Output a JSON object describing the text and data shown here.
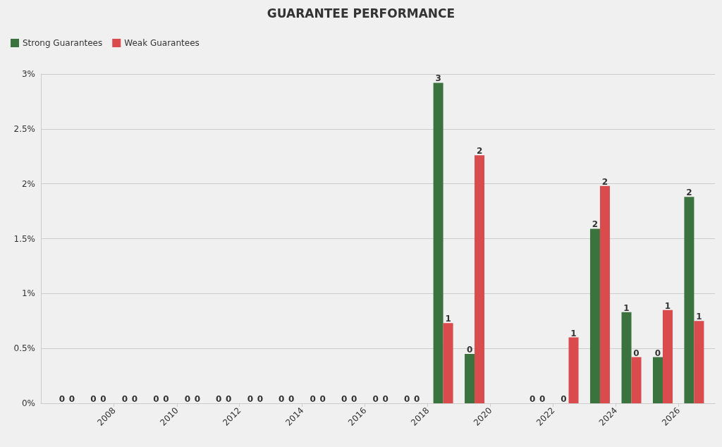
{
  "chart_data": {
    "type": "bar",
    "title": "GUARANTEE PERFORMANCE",
    "x": [
      "2006-07-01",
      "2007-07-01",
      "2008-07-01",
      "2009-07-01",
      "2010-07-01",
      "2011-07-01",
      "2012-07-01",
      "2013-07-01",
      "2014-07-01",
      "2015-07-01",
      "2016-07-01",
      "2017-07-01",
      "2018-07-01",
      "2019-07-01",
      "2021-07-01",
      "2022-07-01",
      "2023-07-01",
      "2024-07-01",
      "2025-07-01",
      "2026-07-01"
    ],
    "series": [
      {
        "name": "Strong Guarantees",
        "color": "#3a733e",
        "values": [
          0,
          0,
          0,
          0,
          0,
          0,
          0,
          0,
          0,
          0,
          0,
          0,
          2.92,
          0.45,
          0,
          0,
          1.59,
          0.83,
          0.42,
          1.88
        ],
        "value_labels": [
          "0",
          "0",
          "0",
          "0",
          "0",
          "0",
          "0",
          "0",
          "0",
          "0",
          "0",
          "0",
          "3",
          "0",
          "0",
          "0",
          "2",
          "1",
          "0",
          "2"
        ]
      },
      {
        "name": "Weak Guarantees",
        "color": "#d94b4d",
        "values": [
          0,
          0,
          0,
          0,
          0,
          0,
          0,
          0,
          0,
          0,
          0,
          0,
          0.73,
          2.26,
          0,
          0.6,
          1.98,
          0.42,
          0.85,
          0.75
        ],
        "value_labels": [
          "0",
          "0",
          "0",
          "0",
          "0",
          "0",
          "0",
          "0",
          "0",
          "0",
          "0",
          "0",
          "1",
          "2",
          "0",
          "1",
          "2",
          "0",
          "1",
          "1"
        ]
      }
    ],
    "xlim": [
      "2005-09-01",
      "2027-03-01"
    ],
    "xticks": [
      "2008",
      "2010",
      "2012",
      "2014",
      "2016",
      "2018",
      "2020",
      "2022",
      "2024",
      "2026"
    ],
    "ylim": [
      0,
      3
    ],
    "yticks": [
      {
        "value": 0,
        "label": "0%"
      },
      {
        "value": 0.5,
        "label": "0.5%"
      },
      {
        "value": 1,
        "label": "1%"
      },
      {
        "value": 1.5,
        "label": "1.5%"
      },
      {
        "value": 2,
        "label": "2%"
      },
      {
        "value": 2.5,
        "label": "2.5%"
      },
      {
        "value": 3,
        "label": "3%"
      }
    ],
    "grid": "y",
    "legend": "top left"
  }
}
